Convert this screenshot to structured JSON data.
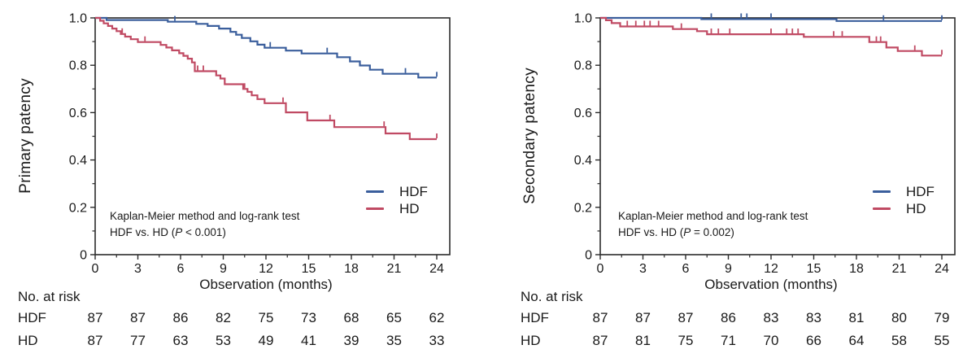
{
  "colors": {
    "hdf": "#3a5e9c",
    "hd": "#c04a63",
    "axis": "#2b2b2b",
    "text": "#1a1a1a"
  },
  "chart_data": [
    {
      "type": "line",
      "subtype": "kaplan-meier-step",
      "ylabel": "Primary patency",
      "xlabel": "Observation (months)",
      "xlim": [
        0,
        24
      ],
      "ylim": [
        0,
        1.0
      ],
      "xticks": [
        "0",
        "3",
        "6",
        "9",
        "12",
        "15",
        "18",
        "21",
        "24"
      ],
      "xtick_values": [
        0,
        3,
        6,
        9,
        12,
        15,
        18,
        21,
        24
      ],
      "yticks": [
        "1.0",
        "0.8",
        "0.6",
        "0.4",
        "0.2",
        "0"
      ],
      "ytick_values": [
        1.0,
        0.8,
        0.6,
        0.4,
        0.2,
        0
      ],
      "grid": "off",
      "legend_position": "lower right inside",
      "annotation": {
        "line1": "Kaplan-Meier method and log-rank test",
        "line2_prefix": "HDF vs. HD (",
        "p_symbol": "P",
        "line2_suffix": " < 0.001)"
      },
      "series": [
        {
          "name": "HDF",
          "color": "hdf",
          "points": [
            [
              0,
              1.0
            ],
            [
              0.8,
              0.991
            ],
            [
              5.1,
              0.984
            ],
            [
              7.1,
              0.975
            ],
            [
              7.9,
              0.966
            ],
            [
              8.7,
              0.955
            ],
            [
              9.5,
              0.941
            ],
            [
              9.9,
              0.929
            ],
            [
              10.3,
              0.915
            ],
            [
              10.9,
              0.901
            ],
            [
              11.4,
              0.887
            ],
            [
              11.9,
              0.874
            ],
            [
              13.4,
              0.862
            ],
            [
              14.5,
              0.85
            ],
            [
              17.0,
              0.834
            ],
            [
              17.9,
              0.816
            ],
            [
              18.6,
              0.799
            ],
            [
              19.3,
              0.781
            ],
            [
              20.2,
              0.764
            ],
            [
              22.7,
              0.748
            ],
            [
              24,
              0.748
            ]
          ],
          "censors": [
            [
              5.6,
              0.984
            ],
            [
              12.3,
              0.874
            ],
            [
              16.3,
              0.85
            ],
            [
              21.8,
              0.764
            ],
            [
              24,
              0.748
            ]
          ]
        },
        {
          "name": "HD",
          "color": "hd",
          "points": [
            [
              0,
              1.0
            ],
            [
              0.35,
              0.988
            ],
            [
              0.6,
              0.977
            ],
            [
              0.9,
              0.966
            ],
            [
              1.2,
              0.955
            ],
            [
              1.5,
              0.944
            ],
            [
              1.8,
              0.932
            ],
            [
              2.1,
              0.921
            ],
            [
              2.5,
              0.91
            ],
            [
              3.0,
              0.898
            ],
            [
              4.6,
              0.886
            ],
            [
              5.0,
              0.875
            ],
            [
              5.4,
              0.863
            ],
            [
              5.9,
              0.851
            ],
            [
              6.2,
              0.84
            ],
            [
              6.5,
              0.828
            ],
            [
              6.8,
              0.812
            ],
            [
              7.0,
              0.775
            ],
            [
              8.5,
              0.757
            ],
            [
              8.8,
              0.744
            ],
            [
              9.1,
              0.72
            ],
            [
              10.4,
              0.7
            ],
            [
              10.7,
              0.688
            ],
            [
              11.0,
              0.673
            ],
            [
              11.4,
              0.657
            ],
            [
              11.9,
              0.64
            ],
            [
              13.4,
              0.601
            ],
            [
              14.9,
              0.567
            ],
            [
              16.8,
              0.539
            ],
            [
              20.4,
              0.512
            ],
            [
              22.1,
              0.488
            ],
            [
              24,
              0.488
            ]
          ],
          "censors": [
            [
              1.9,
              0.932
            ],
            [
              3.5,
              0.898
            ],
            [
              7.2,
              0.775
            ],
            [
              7.6,
              0.775
            ],
            [
              10.5,
              0.7
            ],
            [
              13.2,
              0.64
            ],
            [
              16.5,
              0.567
            ],
            [
              20.3,
              0.539
            ],
            [
              24,
              0.488
            ]
          ]
        }
      ],
      "risk_table": {
        "title": "No. at risk",
        "rows": [
          {
            "label": "HDF",
            "values": [
              "87",
              "87",
              "86",
              "82",
              "75",
              "73",
              "68",
              "65",
              "62"
            ]
          },
          {
            "label": "HD",
            "values": [
              "87",
              "77",
              "63",
              "53",
              "49",
              "41",
              "39",
              "35",
              "33"
            ]
          }
        ]
      }
    },
    {
      "type": "line",
      "subtype": "kaplan-meier-step",
      "ylabel": "Secondary patency",
      "xlabel": "Observation (months)",
      "xlim": [
        0,
        24
      ],
      "ylim": [
        0,
        1.0
      ],
      "xticks": [
        "0",
        "3",
        "6",
        "9",
        "12",
        "15",
        "18",
        "21",
        "24"
      ],
      "xtick_values": [
        0,
        3,
        6,
        9,
        12,
        15,
        18,
        21,
        24
      ],
      "yticks": [
        "1.0",
        "0.8",
        "0.6",
        "0.4",
        "0.2",
        "0"
      ],
      "ytick_values": [
        1.0,
        0.8,
        0.6,
        0.4,
        0.2,
        0
      ],
      "grid": "off",
      "legend_position": "lower right inside",
      "annotation": {
        "line1": "Kaplan-Meier method and log-rank test",
        "line2_prefix": "HDF vs. HD (",
        "p_symbol": "P",
        "line2_suffix": " = 0.002)"
      },
      "series": [
        {
          "name": "HDF",
          "color": "hdf",
          "points": [
            [
              0,
              1.0
            ],
            [
              7.1,
              0.995
            ],
            [
              16.6,
              0.987
            ],
            [
              24,
              0.987
            ]
          ],
          "censors": [
            [
              7.8,
              0.995
            ],
            [
              9.9,
              0.995
            ],
            [
              10.3,
              0.995
            ],
            [
              12.0,
              0.995
            ],
            [
              19.9,
              0.987
            ],
            [
              24,
              0.987
            ]
          ]
        },
        {
          "name": "HD",
          "color": "hd",
          "points": [
            [
              0,
              1.0
            ],
            [
              0.4,
              0.99
            ],
            [
              0.8,
              0.978
            ],
            [
              1.4,
              0.964
            ],
            [
              5.1,
              0.953
            ],
            [
              6.8,
              0.944
            ],
            [
              7.5,
              0.931
            ],
            [
              14.3,
              0.92
            ],
            [
              18.9,
              0.898
            ],
            [
              20.1,
              0.875
            ],
            [
              20.9,
              0.86
            ],
            [
              22.6,
              0.841
            ],
            [
              24,
              0.841
            ]
          ],
          "censors": [
            [
              1.9,
              0.964
            ],
            [
              2.5,
              0.964
            ],
            [
              3.1,
              0.964
            ],
            [
              3.5,
              0.964
            ],
            [
              4.1,
              0.964
            ],
            [
              5.7,
              0.953
            ],
            [
              7.8,
              0.931
            ],
            [
              8.3,
              0.931
            ],
            [
              9.1,
              0.931
            ],
            [
              12.0,
              0.931
            ],
            [
              13.1,
              0.931
            ],
            [
              13.5,
              0.931
            ],
            [
              13.9,
              0.931
            ],
            [
              16.4,
              0.92
            ],
            [
              17.0,
              0.92
            ],
            [
              19.4,
              0.898
            ],
            [
              19.7,
              0.898
            ],
            [
              22.1,
              0.86
            ],
            [
              24,
              0.841
            ]
          ]
        }
      ],
      "risk_table": {
        "title": "No. at risk",
        "rows": [
          {
            "label": "HDF",
            "values": [
              "87",
              "87",
              "87",
              "86",
              "83",
              "83",
              "81",
              "80",
              "79"
            ]
          },
          {
            "label": "HD",
            "values": [
              "87",
              "81",
              "75",
              "71",
              "70",
              "66",
              "64",
              "58",
              "55"
            ]
          }
        ]
      }
    }
  ]
}
